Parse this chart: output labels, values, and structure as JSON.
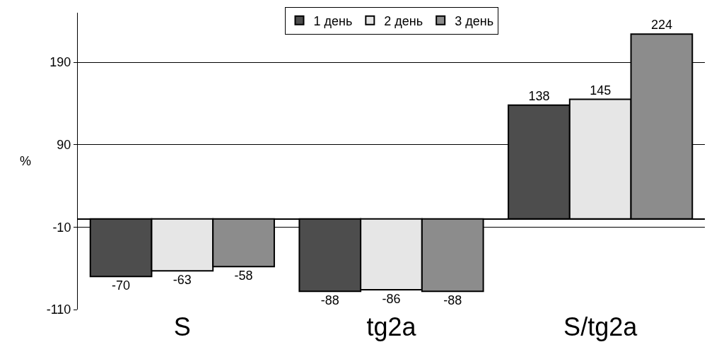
{
  "chart_data": {
    "type": "bar",
    "ylabel": "%",
    "categories": [
      "S",
      "tg2a",
      "S/tg2a"
    ],
    "series": [
      {
        "name": "1 день",
        "color": "#4d4d4d",
        "values": [
          -70,
          -88,
          138
        ]
      },
      {
        "name": "2 день",
        "color": "#e6e6e6",
        "values": [
          -63,
          -86,
          145
        ]
      },
      {
        "name": "3 день",
        "color": "#8c8c8c",
        "values": [
          -58,
          -88,
          224
        ]
      }
    ],
    "ylim": [
      -110,
      250
    ],
    "yticks": [
      -110,
      -10,
      90,
      190
    ],
    "grid": "y",
    "legend": "top",
    "data_labels": true
  }
}
